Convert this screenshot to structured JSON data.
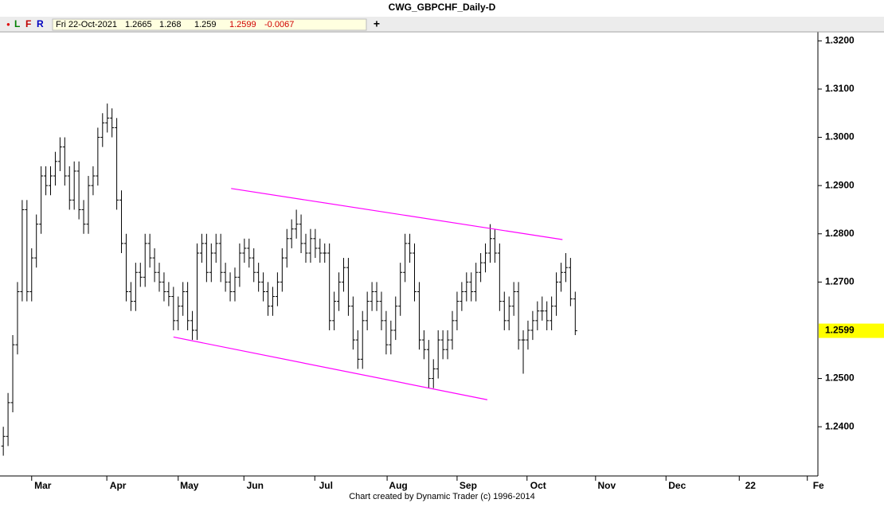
{
  "chart_data": {
    "type": "ohlc",
    "title": "CWG_GBPCHF_Daily-D",
    "series": [
      {
        "name": "GBPCHF",
        "color": "#000000",
        "values": [
          [
            1.236,
            1.24,
            1.234,
            1.238
          ],
          [
            1.238,
            1.247,
            1.236,
            1.245
          ],
          [
            1.245,
            1.259,
            1.243,
            1.257
          ],
          [
            1.257,
            1.27,
            1.255,
            1.268
          ],
          [
            1.268,
            1.287,
            1.266,
            1.285
          ],
          [
            1.285,
            1.287,
            1.266,
            1.268
          ],
          [
            1.268,
            1.277,
            1.266,
            1.275
          ],
          [
            1.275,
            1.284,
            1.273,
            1.282
          ],
          [
            1.282,
            1.294,
            1.28,
            1.292
          ],
          [
            1.292,
            1.294,
            1.288,
            1.29
          ],
          [
            1.29,
            1.294,
            1.288,
            1.292
          ],
          [
            1.292,
            1.297,
            1.29,
            1.295
          ],
          [
            1.295,
            1.3,
            1.293,
            1.298
          ],
          [
            1.298,
            1.3,
            1.29,
            1.292
          ],
          [
            1.292,
            1.294,
            1.285,
            1.287
          ],
          [
            1.287,
            1.295,
            1.285,
            1.293
          ],
          [
            1.293,
            1.295,
            1.283,
            1.285
          ],
          [
            1.285,
            1.287,
            1.28,
            1.282
          ],
          [
            1.282,
            1.292,
            1.28,
            1.29
          ],
          [
            1.29,
            1.294,
            1.288,
            1.292
          ],
          [
            1.292,
            1.302,
            1.29,
            1.3
          ],
          [
            1.3,
            1.305,
            1.298,
            1.303
          ],
          [
            1.303,
            1.307,
            1.301,
            1.304
          ],
          [
            1.304,
            1.306,
            1.3,
            1.302
          ],
          [
            1.302,
            1.304,
            1.285,
            1.287
          ],
          [
            1.287,
            1.289,
            1.276,
            1.278
          ],
          [
            1.278,
            1.28,
            1.266,
            1.268
          ],
          [
            1.268,
            1.27,
            1.264,
            1.266
          ],
          [
            1.266,
            1.274,
            1.264,
            1.272
          ],
          [
            1.272,
            1.274,
            1.269,
            1.271
          ],
          [
            1.271,
            1.28,
            1.269,
            1.278
          ],
          [
            1.278,
            1.28,
            1.273,
            1.275
          ],
          [
            1.275,
            1.277,
            1.27,
            1.272
          ],
          [
            1.272,
            1.274,
            1.268,
            1.27
          ],
          [
            1.27,
            1.272,
            1.266,
            1.268
          ],
          [
            1.268,
            1.27,
            1.265,
            1.267
          ],
          [
            1.267,
            1.269,
            1.26,
            1.262
          ],
          [
            1.262,
            1.267,
            1.26,
            1.265
          ],
          [
            1.265,
            1.27,
            1.263,
            1.268
          ],
          [
            1.268,
            1.27,
            1.26,
            1.262
          ],
          [
            1.262,
            1.264,
            1.258,
            1.26
          ],
          [
            1.26,
            1.278,
            1.258,
            1.276
          ],
          [
            1.276,
            1.28,
            1.274,
            1.278
          ],
          [
            1.278,
            1.28,
            1.27,
            1.272
          ],
          [
            1.272,
            1.278,
            1.27,
            1.276
          ],
          [
            1.276,
            1.28,
            1.274,
            1.278
          ],
          [
            1.278,
            1.28,
            1.27,
            1.272
          ],
          [
            1.272,
            1.274,
            1.268,
            1.27
          ],
          [
            1.27,
            1.272,
            1.266,
            1.268
          ],
          [
            1.268,
            1.273,
            1.266,
            1.271
          ],
          [
            1.271,
            1.278,
            1.269,
            1.276
          ],
          [
            1.276,
            1.279,
            1.274,
            1.277
          ],
          [
            1.277,
            1.279,
            1.273,
            1.275
          ],
          [
            1.275,
            1.277,
            1.27,
            1.272
          ],
          [
            1.272,
            1.274,
            1.268,
            1.27
          ],
          [
            1.27,
            1.272,
            1.266,
            1.268
          ],
          [
            1.268,
            1.27,
            1.263,
            1.265
          ],
          [
            1.265,
            1.269,
            1.263,
            1.267
          ],
          [
            1.267,
            1.272,
            1.265,
            1.27
          ],
          [
            1.27,
            1.277,
            1.268,
            1.275
          ],
          [
            1.275,
            1.281,
            1.273,
            1.279
          ],
          [
            1.279,
            1.283,
            1.277,
            1.281
          ],
          [
            1.281,
            1.285,
            1.279,
            1.282
          ],
          [
            1.282,
            1.284,
            1.276,
            1.278
          ],
          [
            1.278,
            1.28,
            1.274,
            1.276
          ],
          [
            1.276,
            1.281,
            1.274,
            1.279
          ],
          [
            1.279,
            1.281,
            1.275,
            1.277
          ],
          [
            1.277,
            1.279,
            1.274,
            1.276
          ],
          [
            1.276,
            1.278,
            1.274,
            1.276
          ],
          [
            1.276,
            1.278,
            1.26,
            1.262
          ],
          [
            1.262,
            1.268,
            1.26,
            1.266
          ],
          [
            1.266,
            1.272,
            1.264,
            1.27
          ],
          [
            1.27,
            1.275,
            1.268,
            1.273
          ],
          [
            1.273,
            1.275,
            1.263,
            1.265
          ],
          [
            1.265,
            1.267,
            1.256,
            1.258
          ],
          [
            1.258,
            1.26,
            1.252,
            1.254
          ],
          [
            1.254,
            1.264,
            1.252,
            1.262
          ],
          [
            1.262,
            1.268,
            1.26,
            1.266
          ],
          [
            1.266,
            1.27,
            1.264,
            1.268
          ],
          [
            1.268,
            1.27,
            1.264,
            1.266
          ],
          [
            1.266,
            1.268,
            1.26,
            1.262
          ],
          [
            1.262,
            1.264,
            1.255,
            1.257
          ],
          [
            1.257,
            1.262,
            1.255,
            1.26
          ],
          [
            1.26,
            1.267,
            1.258,
            1.265
          ],
          [
            1.265,
            1.274,
            1.263,
            1.272
          ],
          [
            1.272,
            1.28,
            1.27,
            1.278
          ],
          [
            1.278,
            1.28,
            1.274,
            1.276
          ],
          [
            1.276,
            1.278,
            1.266,
            1.268
          ],
          [
            1.268,
            1.27,
            1.256,
            1.258
          ],
          [
            1.258,
            1.26,
            1.254,
            1.256
          ],
          [
            1.256,
            1.258,
            1.248,
            1.25
          ],
          [
            1.25,
            1.254,
            1.248,
            1.252
          ],
          [
            1.252,
            1.26,
            1.25,
            1.258
          ],
          [
            1.258,
            1.26,
            1.254,
            1.256
          ],
          [
            1.256,
            1.26,
            1.254,
            1.258
          ],
          [
            1.258,
            1.264,
            1.256,
            1.262
          ],
          [
            1.262,
            1.268,
            1.26,
            1.266
          ],
          [
            1.266,
            1.27,
            1.264,
            1.268
          ],
          [
            1.268,
            1.272,
            1.266,
            1.27
          ],
          [
            1.27,
            1.272,
            1.266,
            1.268
          ],
          [
            1.268,
            1.274,
            1.266,
            1.272
          ],
          [
            1.272,
            1.276,
            1.27,
            1.274
          ],
          [
            1.274,
            1.278,
            1.272,
            1.276
          ],
          [
            1.276,
            1.282,
            1.274,
            1.279
          ],
          [
            1.279,
            1.281,
            1.274,
            1.276
          ],
          [
            1.276,
            1.278,
            1.264,
            1.266
          ],
          [
            1.266,
            1.268,
            1.26,
            1.262
          ],
          [
            1.262,
            1.267,
            1.26,
            1.265
          ],
          [
            1.265,
            1.27,
            1.263,
            1.268
          ],
          [
            1.268,
            1.27,
            1.256,
            1.258
          ],
          [
            1.258,
            1.26,
            1.251,
            1.258
          ],
          [
            1.258,
            1.262,
            1.256,
            1.26
          ],
          [
            1.26,
            1.264,
            1.258,
            1.262
          ],
          [
            1.262,
            1.266,
            1.26,
            1.264
          ],
          [
            1.264,
            1.267,
            1.262,
            1.264
          ],
          [
            1.264,
            1.266,
            1.26,
            1.262
          ],
          [
            1.262,
            1.267,
            1.26,
            1.265
          ],
          [
            1.265,
            1.272,
            1.263,
            1.27
          ],
          [
            1.27,
            1.274,
            1.268,
            1.272
          ],
          [
            1.272,
            1.276,
            1.27,
            1.273
          ],
          [
            1.273,
            1.275,
            1.265,
            1.2665
          ],
          [
            1.2665,
            1.268,
            1.259,
            1.2599
          ]
        ]
      }
    ],
    "xlim": [
      -0.7,
      172
    ],
    "xticks": [
      {
        "value": 6.0,
        "label": "Mar"
      },
      {
        "value": 21.9,
        "label": "Apr"
      },
      {
        "value": 37.0,
        "label": "May"
      },
      {
        "value": 50.9,
        "label": "Jun"
      },
      {
        "value": 65.9,
        "label": "Jul"
      },
      {
        "value": 81.2,
        "label": "Aug"
      },
      {
        "value": 96.0,
        "label": "Sep"
      },
      {
        "value": 110.8,
        "label": "Oct"
      },
      {
        "value": 125.3,
        "label": "Nov"
      },
      {
        "value": 140.2,
        "label": "Dec"
      },
      {
        "value": 155.7,
        "label": "22"
      },
      {
        "value": 170.1,
        "label": "Fe"
      }
    ],
    "ylim": [
      1.2298,
      1.3222
    ],
    "yticks": [
      {
        "value": 1.24,
        "label": "1.2400"
      },
      {
        "value": 1.25,
        "label": "1.2500"
      },
      {
        "value": 1.27,
        "label": "1.2700"
      },
      {
        "value": 1.28,
        "label": "1.2800"
      },
      {
        "value": 1.29,
        "label": "1.2900"
      },
      {
        "value": 1.3,
        "label": "1.3000"
      },
      {
        "value": 1.31,
        "label": "1.3100"
      },
      {
        "value": 1.32,
        "label": "1.3200"
      }
    ],
    "trendlines": [
      {
        "color": "#ff00ff",
        "x": [
          48.2,
          118.3
        ],
        "y": [
          1.2894,
          1.2788
        ]
      },
      {
        "color": "#ff00ff",
        "x": [
          36.0,
          102.4
        ],
        "y": [
          1.2586,
          1.2456
        ]
      }
    ],
    "last_price_color": "#ffff00",
    "info_date": "Fri 22-Oct-2021",
    "change": -0.0067
  },
  "toolbar": {
    "dot": "●",
    "buttons": [
      "L",
      "F",
      "R"
    ],
    "plus": "+"
  },
  "footer": "Chart created by Dynamic Trader  (c)  1996-2014"
}
